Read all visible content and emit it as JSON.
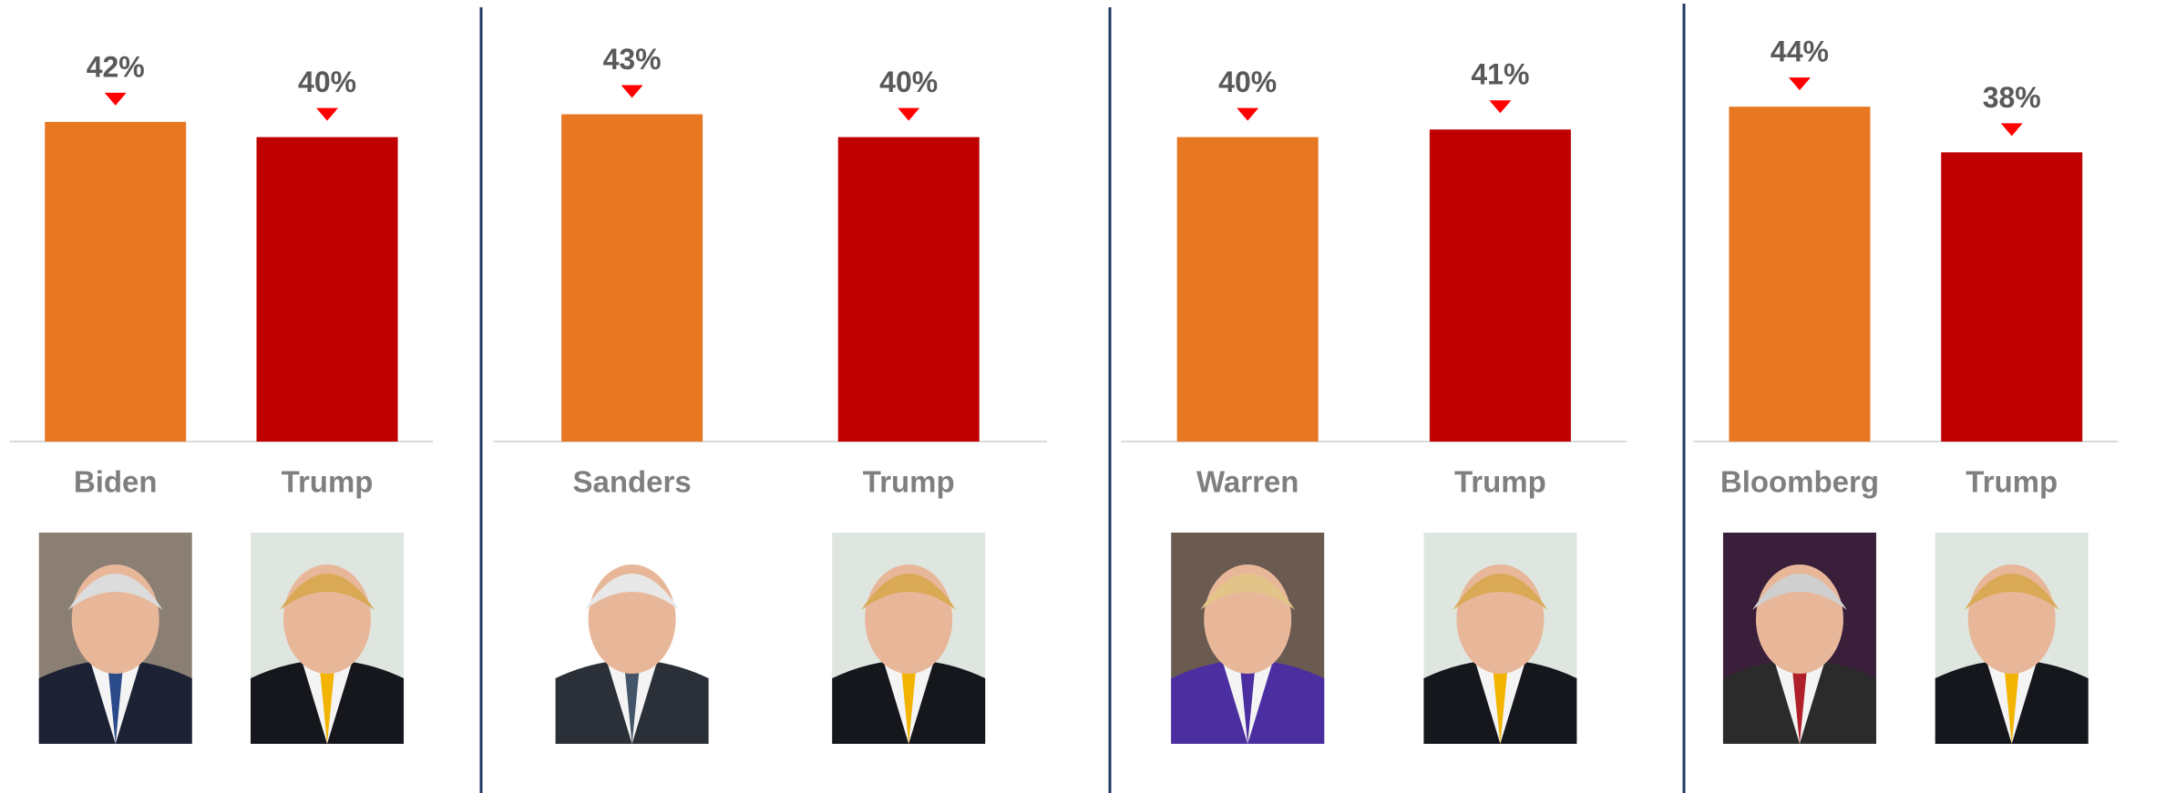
{
  "chart_data": [
    {
      "type": "bar",
      "categories": [
        "Biden",
        "Trump"
      ],
      "values": [
        42,
        40
      ],
      "value_labels": [
        "42%",
        "40%"
      ],
      "colors": [
        "#e87722",
        "#c00000"
      ],
      "ylim": [
        0,
        50
      ]
    },
    {
      "type": "bar",
      "categories": [
        "Sanders",
        "Trump"
      ],
      "values": [
        43,
        40
      ],
      "value_labels": [
        "43%",
        "40%"
      ],
      "colors": [
        "#e87722",
        "#c00000"
      ],
      "ylim": [
        0,
        50
      ]
    },
    {
      "type": "bar",
      "categories": [
        "Warren",
        "Trump"
      ],
      "values": [
        40,
        41
      ],
      "value_labels": [
        "40%",
        "41%"
      ],
      "colors": [
        "#e87722",
        "#c00000"
      ],
      "ylim": [
        0,
        50
      ]
    },
    {
      "type": "bar",
      "categories": [
        "Bloomberg",
        "Trump"
      ],
      "values": [
        44,
        38
      ],
      "value_labels": [
        "44%",
        "38%"
      ],
      "colors": [
        "#e87722",
        "#c00000"
      ],
      "ylim": [
        0,
        50
      ]
    }
  ]
}
